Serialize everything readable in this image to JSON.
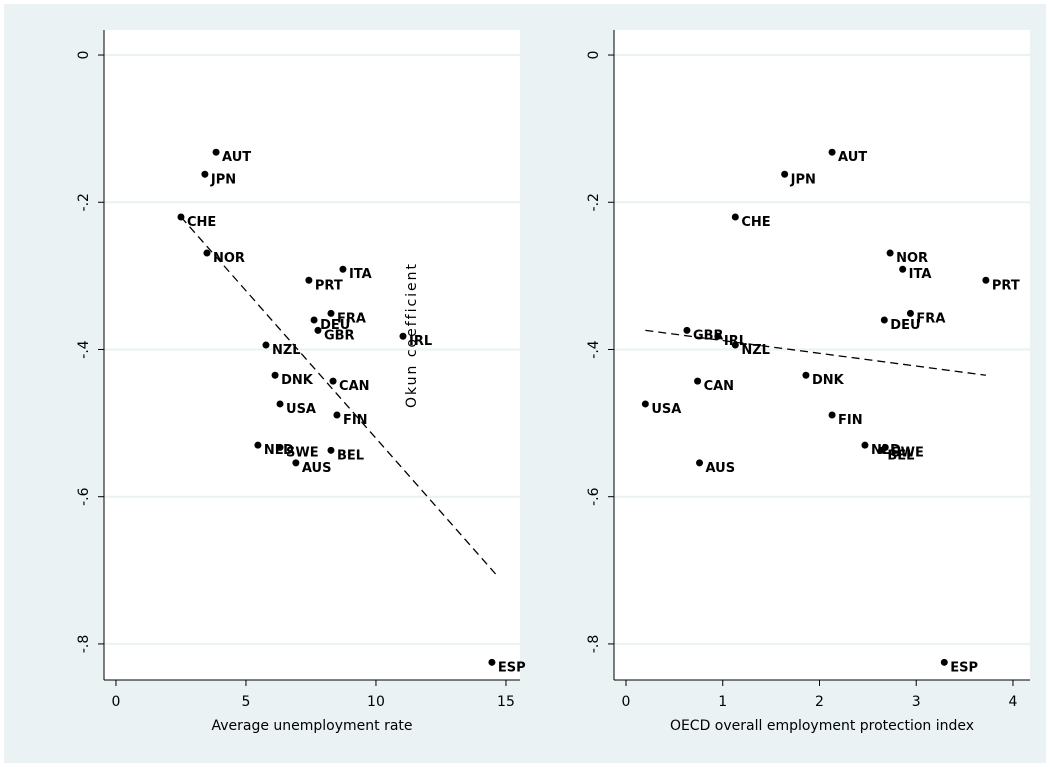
{
  "chart_data": [
    {
      "type": "scatter",
      "xlabel": "Average unemployment rate",
      "annotation": "Okun coefficient",
      "color": "#000000",
      "fit_color": "#000000",
      "grid": true,
      "labels": [
        "AUT",
        "JPN",
        "CHE",
        "NOR",
        "ITA",
        "PRT",
        "FRA",
        "DEU",
        "GBR",
        "IRL",
        "NZL",
        "DNK",
        "CAN",
        "USA",
        "FIN",
        "NLD",
        "SWE",
        "BEL",
        "AUS",
        "ESP"
      ],
      "x": [
        3.85,
        3.42,
        2.5,
        3.5,
        8.73,
        7.42,
        8.27,
        7.62,
        7.77,
        11.04,
        5.77,
        6.12,
        8.35,
        6.31,
        8.5,
        5.46,
        6.31,
        8.27,
        6.92,
        14.46
      ],
      "y": [
        -0.132,
        -0.162,
        -0.22,
        -0.269,
        -0.291,
        -0.306,
        -0.351,
        -0.36,
        -0.374,
        -0.382,
        -0.394,
        -0.435,
        -0.443,
        -0.474,
        -0.489,
        -0.53,
        -0.533,
        -0.537,
        -0.554,
        -0.825
      ],
      "fit": {
        "x": [
          2.5,
          14.6
        ],
        "y": [
          -0.22,
          -0.705
        ]
      },
      "xlim": [
        -0.46,
        15.54
      ],
      "xticks": [
        0,
        5,
        10,
        15
      ],
      "ylim": [
        -0.849,
        0.034
      ],
      "yticks": [
        0,
        {
          "value": -0.2,
          "label": "-.2"
        },
        {
          "value": -0.4,
          "label": "-.4"
        },
        {
          "value": -0.6,
          "label": "-.6"
        },
        {
          "value": -0.8,
          "label": "-.8"
        }
      ]
    },
    {
      "type": "scatter",
      "xlabel": "OECD overall employment protection index",
      "color": "#000000",
      "fit_color": "#000000",
      "grid": true,
      "labels": [
        "AUT",
        "JPN",
        "CHE",
        "NOR",
        "ITA",
        "PRT",
        "FRA",
        "DEU",
        "GBR",
        "IRL",
        "NZL",
        "DNK",
        "CAN",
        "USA",
        "FIN",
        "NLD",
        "SWE",
        "BEL",
        "AUS",
        "ESP"
      ],
      "x": [
        2.13,
        1.64,
        1.13,
        2.73,
        2.86,
        3.72,
        2.94,
        2.67,
        0.63,
        0.95,
        1.13,
        1.86,
        0.74,
        0.2,
        2.13,
        2.47,
        2.68,
        2.64,
        0.76,
        3.29
      ],
      "y": [
        -0.132,
        -0.162,
        -0.22,
        -0.269,
        -0.291,
        -0.306,
        -0.351,
        -0.36,
        -0.374,
        -0.382,
        -0.394,
        -0.435,
        -0.443,
        -0.474,
        -0.489,
        -0.53,
        -0.533,
        -0.537,
        -0.554,
        -0.825
      ],
      "fit": {
        "x": [
          0.2,
          3.72
        ],
        "y": [
          -0.374,
          -0.435
        ]
      },
      "xlim": [
        -0.124,
        4.176
      ],
      "xticks": [
        0,
        1,
        2,
        3,
        4
      ],
      "ylim": [
        -0.849,
        0.034
      ],
      "yticks": [
        0,
        {
          "value": -0.2,
          "label": "-.2"
        },
        {
          "value": -0.4,
          "label": "-.4"
        },
        {
          "value": -0.6,
          "label": "-.6"
        },
        {
          "value": -0.8,
          "label": "-.8"
        }
      ]
    }
  ]
}
